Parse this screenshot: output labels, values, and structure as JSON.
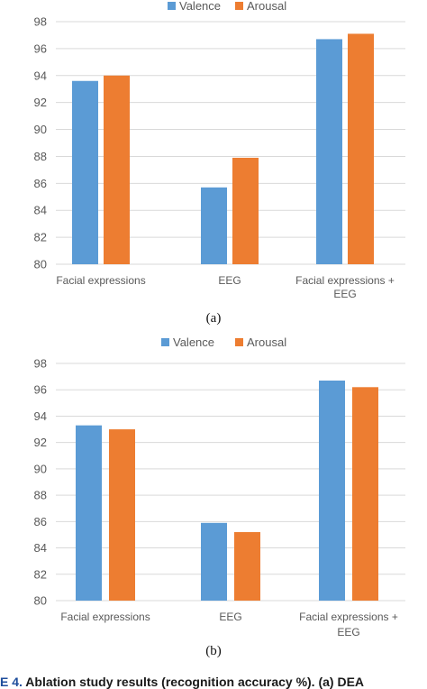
{
  "colors": {
    "valence": "#5b9bd5",
    "arousal": "#ed7d31",
    "grid": "#d9d9d9",
    "axis_text": "#595959"
  },
  "chart_data": [
    {
      "type": "bar",
      "legend_position": "top",
      "grid": true,
      "categories": [
        "Facial expressions",
        "EEG",
        "Facial expressions + EEG"
      ],
      "series": [
        {
          "name": "Valence",
          "values": [
            93.6,
            85.7,
            96.7
          ]
        },
        {
          "name": "Arousal",
          "values": [
            94.0,
            87.9,
            97.1
          ]
        }
      ],
      "ylim": [
        80,
        98
      ],
      "yticks": [
        80,
        82,
        84,
        86,
        88,
        90,
        92,
        94,
        96,
        98
      ]
    },
    {
      "type": "bar",
      "legend_position": "top",
      "grid": true,
      "categories": [
        "Facial expressions",
        "EEG",
        "Facial expressions + EEG"
      ],
      "series": [
        {
          "name": "Valence",
          "values": [
            93.3,
            85.9,
            96.7
          ]
        },
        {
          "name": "Arousal",
          "values": [
            93.0,
            85.2,
            96.2
          ]
        }
      ],
      "ylim": [
        80,
        98
      ],
      "yticks": [
        80,
        82,
        84,
        86,
        88,
        90,
        92,
        94,
        96,
        98
      ]
    }
  ],
  "sub_labels": [
    "(a)",
    "(b)"
  ],
  "caption": {
    "fig": "E 4.",
    "text": " Ablation study results (recognition accuracy %). (a) DEA"
  }
}
